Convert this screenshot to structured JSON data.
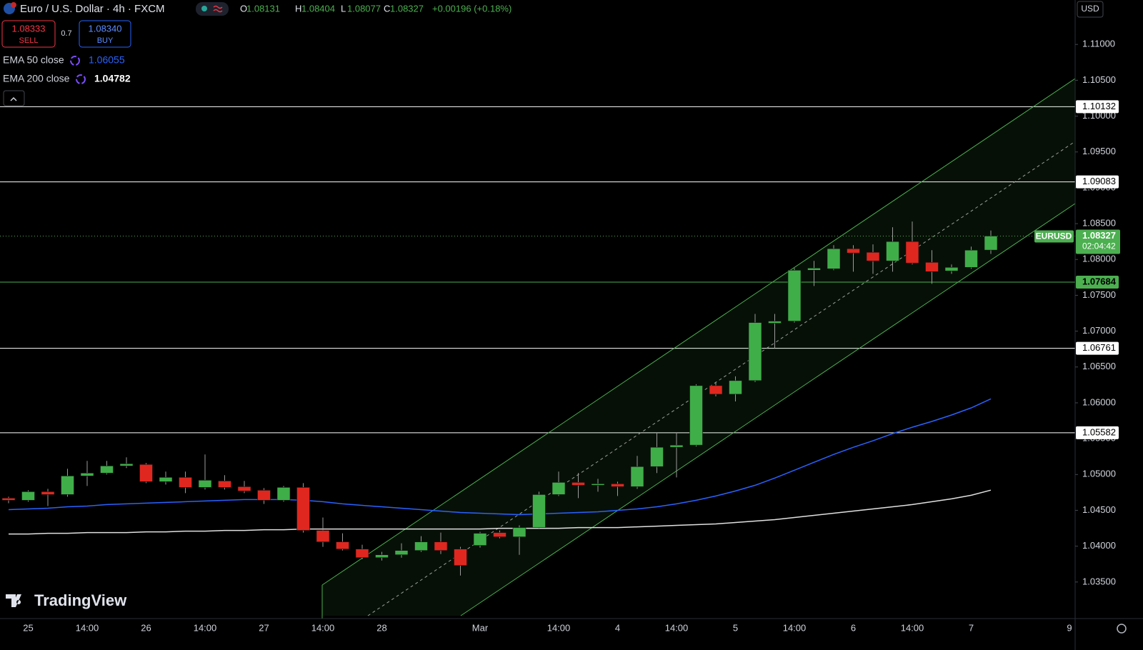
{
  "header": {
    "symbol_title": "Euro / U.S. Dollar · 4h · FXCM",
    "ohlc_labels": [
      "O",
      "H",
      "L",
      "C"
    ],
    "change": "+0.00196 (+0.18%)"
  },
  "trade": {
    "sell_price": "1.08333",
    "sell_label": "SELL",
    "spread": "0.7",
    "buy_price": "1.08340",
    "buy_label": "BUY"
  },
  "chart_data": {
    "type": "candlestick",
    "currency": "USD",
    "watermark": "TradingView",
    "categories": [
      null,
      "25",
      null,
      null,
      "14:00",
      null,
      null,
      "26",
      null,
      null,
      "14:00",
      null,
      null,
      "27",
      null,
      null,
      "14:00",
      null,
      null,
      "28",
      null,
      null,
      null,
      null,
      "Mar",
      null,
      null,
      null,
      "14:00",
      null,
      null,
      "4",
      null,
      null,
      "14:00",
      null,
      null,
      "5",
      null,
      null,
      "14:00",
      null,
      null,
      "6",
      null,
      null,
      "14:00",
      null,
      null,
      "7",
      null,
      null,
      null,
      null,
      "9"
    ],
    "open": [
      1.0467,
      1.0464,
      1.0476,
      1.0472,
      1.0498,
      1.0502,
      1.0512,
      1.0514,
      1.049,
      1.0496,
      1.0482,
      1.0491,
      1.0483,
      1.0478,
      1.0464,
      1.0482,
      1.0422,
      1.0406,
      1.0396,
      1.0384,
      1.0388,
      1.0394,
      1.0406,
      1.0396,
      1.0401,
      1.0419,
      1.0413,
      1.0426,
      1.0472,
      1.0489,
      1.0485,
      1.0487,
      1.0483,
      1.0511,
      1.0538,
      1.0541,
      1.0624,
      1.0612,
      1.0631,
      1.0711,
      1.0714,
      1.0785,
      1.0787,
      1.0815,
      1.081,
      1.0798,
      1.0825,
      1.0796,
      1.0784,
      1.0789,
      1.08131,
      null,
      null,
      null,
      null
    ],
    "high": [
      1.0469,
      1.0478,
      1.048,
      1.0508,
      1.0519,
      1.0519,
      1.0524,
      1.0516,
      1.0504,
      1.0504,
      1.0528,
      1.0499,
      1.0491,
      1.0481,
      1.0484,
      1.0488,
      1.044,
      1.0418,
      1.0402,
      1.0392,
      1.0404,
      1.0414,
      1.0419,
      1.0399,
      1.042,
      1.0422,
      1.0429,
      1.0476,
      1.0504,
      1.0502,
      1.0494,
      1.049,
      1.0526,
      1.0559,
      1.0559,
      1.0626,
      1.0629,
      1.0637,
      1.0724,
      1.0724,
      1.0788,
      1.0798,
      1.082,
      1.082,
      1.0821,
      1.0845,
      1.0853,
      1.0813,
      1.0793,
      1.0818,
      1.08404,
      null,
      null,
      null,
      null
    ],
    "low": [
      1.046,
      1.0462,
      1.0456,
      1.0469,
      1.0484,
      1.05,
      1.0509,
      1.0488,
      1.0486,
      1.0474,
      1.0479,
      1.0479,
      1.0474,
      1.0459,
      1.0462,
      1.0419,
      1.0399,
      1.0394,
      1.0382,
      1.038,
      1.0384,
      1.0392,
      1.0389,
      1.0359,
      1.0398,
      1.0411,
      1.0388,
      1.0424,
      1.047,
      1.0467,
      1.0476,
      1.047,
      1.048,
      1.0502,
      1.0496,
      1.0539,
      1.0609,
      1.0602,
      1.0629,
      1.0676,
      1.0712,
      1.0763,
      1.0785,
      1.0783,
      1.078,
      1.0783,
      1.0793,
      1.0766,
      1.078,
      1.0787,
      1.08077,
      null,
      null,
      null,
      null
    ],
    "close": [
      1.0464,
      1.0476,
      1.0472,
      1.0498,
      1.0502,
      1.0512,
      1.0515,
      1.049,
      1.0496,
      1.0482,
      1.0492,
      1.0482,
      1.0477,
      1.0464,
      1.0482,
      1.0422,
      1.0406,
      1.0396,
      1.0384,
      1.0388,
      1.0394,
      1.0406,
      1.0394,
      1.0373,
      1.0418,
      1.0413,
      1.0426,
      1.0472,
      1.0489,
      1.0485,
      1.0487,
      1.0483,
      1.0511,
      1.0538,
      1.0541,
      1.0624,
      1.0612,
      1.0631,
      1.0712,
      1.0714,
      1.0785,
      1.0788,
      1.0815,
      1.0809,
      1.0798,
      1.0825,
      1.0795,
      1.0783,
      1.0789,
      1.0813,
      1.08327,
      null,
      null,
      null,
      null
    ],
    "up_color": "#3fae49",
    "down_color": "#e0271f",
    "series": [
      {
        "name": "EMA 50 close",
        "color": "#2962ff",
        "values": [
          1.0451,
          1.0452,
          1.0453,
          1.0455,
          1.0456,
          1.0458,
          1.0459,
          1.046,
          1.0461,
          1.0462,
          1.0463,
          1.0464,
          1.0465,
          1.0465,
          1.0465,
          1.0464,
          1.0462,
          1.0459,
          1.0457,
          1.0455,
          1.0453,
          1.0451,
          1.0449,
          1.0447,
          1.0446,
          1.0445,
          1.0444,
          1.0445,
          1.0446,
          1.0447,
          1.0448,
          1.045,
          1.0452,
          1.0455,
          1.0459,
          1.0464,
          1.047,
          1.0477,
          1.0485,
          1.0495,
          1.0506,
          1.0517,
          1.0528,
          1.0538,
          1.0547,
          1.0557,
          1.0566,
          1.0574,
          1.0583,
          1.0593,
          1.06055,
          null,
          null,
          null,
          null
        ]
      },
      {
        "name": "EMA 200 close",
        "color": "#e0e0e0",
        "values": [
          1.0417,
          1.0417,
          1.0418,
          1.0418,
          1.0419,
          1.0419,
          1.0419,
          1.042,
          1.042,
          1.0421,
          1.0421,
          1.0422,
          1.0422,
          1.0423,
          1.0423,
          1.0424,
          1.0424,
          1.0424,
          1.0424,
          1.0424,
          1.0424,
          1.0424,
          1.0424,
          1.0424,
          1.0424,
          1.0425,
          1.0425,
          1.0425,
          1.0425,
          1.0426,
          1.0426,
          1.0426,
          1.0427,
          1.0428,
          1.0429,
          1.043,
          1.0431,
          1.0433,
          1.0435,
          1.0437,
          1.044,
          1.0443,
          1.0446,
          1.0449,
          1.0452,
          1.0455,
          1.0458,
          1.0462,
          1.0466,
          1.0471,
          1.04782,
          null,
          null,
          null,
          null
        ]
      }
    ],
    "levels": [
      {
        "value": 1.10132,
        "color": "#ffffff"
      },
      {
        "value": 1.09083,
        "color": "#ffffff"
      },
      {
        "value": 1.07684,
        "color": "#4caf50"
      },
      {
        "value": 1.06761,
        "color": "#ffffff"
      },
      {
        "value": 1.05582,
        "color": "#ffffff"
      }
    ],
    "last_price": {
      "symbol": "EURUSD",
      "countdown": "02:04:42",
      "color": "#4caf50"
    },
    "ylim": [
      1.0299,
      1.1162
    ],
    "yticks": [
      {
        "value": 1.035,
        "label": "1.03500"
      },
      {
        "value": 1.04,
        "label": "1.04000"
      },
      {
        "value": 1.045,
        "label": "1.04500"
      },
      {
        "value": 1.05,
        "label": "1.05000"
      },
      {
        "value": 1.055,
        "label": "1.05500"
      },
      {
        "value": 1.06,
        "label": "1.06000"
      },
      {
        "value": 1.065,
        "label": "1.06500"
      },
      {
        "value": 1.07,
        "label": "1.07000"
      },
      {
        "value": 1.075,
        "label": "1.07500"
      },
      {
        "value": 1.08,
        "label": "1.08000"
      },
      {
        "value": 1.085,
        "label": "1.08500"
      },
      {
        "value": 1.09,
        "label": "1.09000"
      },
      {
        "value": 1.095,
        "label": "1.09500"
      },
      {
        "value": 1.1,
        "label": "1.10000"
      },
      {
        "value": 1.105,
        "label": "1.10500"
      },
      {
        "value": 1.11,
        "label": "1.11000"
      }
    ],
    "grid": false
  }
}
